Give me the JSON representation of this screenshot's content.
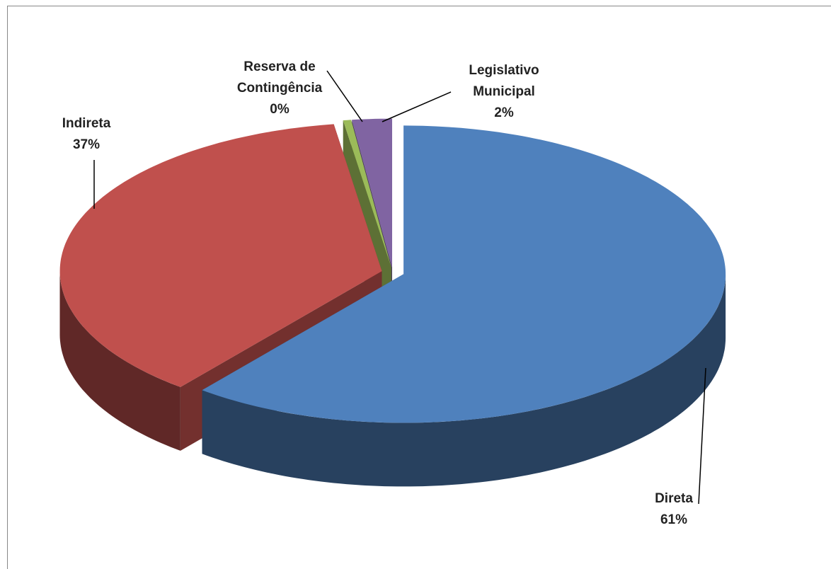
{
  "chart_data": {
    "type": "pie",
    "categories": [
      "Direta",
      "Indireta",
      "Reserva de Contingência",
      "Legislativo Municipal"
    ],
    "values": [
      61,
      37,
      0.4,
      2
    ],
    "value_labels": [
      "61%",
      "37%",
      "0%",
      "2%"
    ],
    "colors": [
      "#4f81bd",
      "#c0504d",
      "#9bbb59",
      "#8064a2"
    ]
  }
}
